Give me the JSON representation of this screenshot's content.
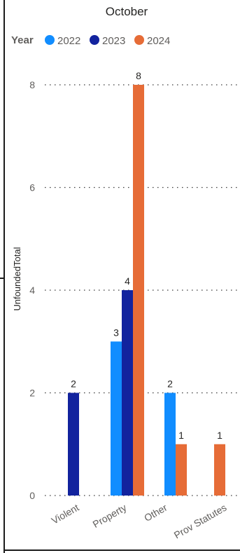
{
  "chart_data": {
    "type": "bar",
    "title": "October",
    "legend": {
      "title": "Year",
      "placement": "top-left"
    },
    "ylabel": "UnfoundedTotal",
    "xlabel": "",
    "ylim": [
      0,
      8
    ],
    "yticks": [
      "0",
      "2",
      "4",
      "6",
      "8"
    ],
    "grid": "horizontal dotted",
    "categories": [
      "Violent",
      "Property",
      "Other",
      "Prov Statutes"
    ],
    "series": [
      {
        "name": "2022",
        "color": "#118dff",
        "values": [
          null,
          3,
          2,
          null
        ]
      },
      {
        "name": "2023",
        "color": "#12239e",
        "values": [
          2,
          4,
          null,
          null
        ]
      },
      {
        "name": "2024",
        "color": "#e66c37",
        "values": [
          null,
          8,
          1,
          1
        ]
      }
    ]
  }
}
